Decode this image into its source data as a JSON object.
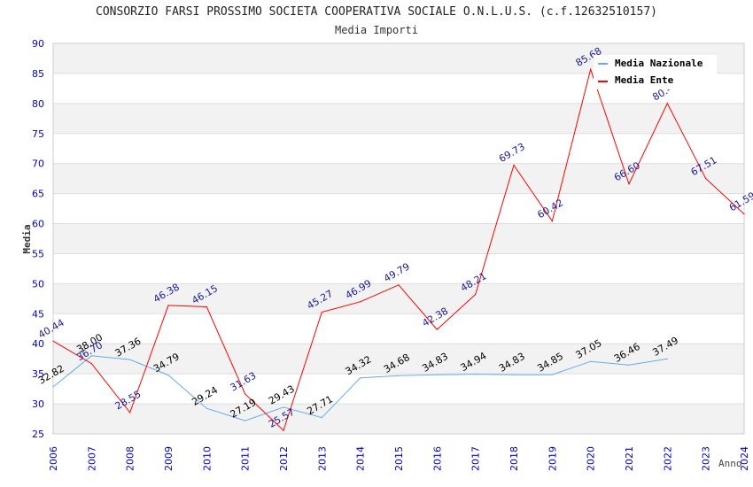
{
  "chart_data": {
    "type": "line",
    "title": "CONSORZIO FARSI PROSSIMO SOCIETA COOPERATIVA SOCIALE O.N.L.U.S. (c.f.12632510157)",
    "subtitle": "Media Importi",
    "xlabel": "Anno",
    "ylabel": "Media",
    "ylim": [
      25,
      90
    ],
    "yticks": [
      "25",
      "30",
      "35",
      "40",
      "45",
      "50",
      "55",
      "60",
      "65",
      "70",
      "75",
      "80",
      "85",
      "90"
    ],
    "x": [
      "2006",
      "2007",
      "2008",
      "2009",
      "2010",
      "2011",
      "2012",
      "2013",
      "2014",
      "2015",
      "2016",
      "2017",
      "2018",
      "2019",
      "2020",
      "2021",
      "2022",
      "2023",
      "2024"
    ],
    "grid": true,
    "legend_position": "top-right",
    "series": [
      {
        "name": "Media Nazionale",
        "color": "#66aaee",
        "values": [
          32.82,
          38.0,
          37.36,
          34.79,
          29.24,
          27.19,
          29.43,
          27.71,
          34.32,
          34.68,
          34.83,
          34.94,
          34.83,
          34.85,
          37.05,
          36.46,
          37.49,
          null,
          null
        ],
        "labels": [
          "32.82",
          "38.00",
          "37.36",
          "34.79",
          "29.24",
          "27.19",
          "29.43",
          "27.71",
          "34.32",
          "34.68",
          "34.83",
          "34.94",
          "34.83",
          "34.85",
          "37.05",
          "36.46",
          "37.49",
          null,
          null
        ]
      },
      {
        "name": "Media Ente",
        "color": "#ff0000",
        "values": [
          40.44,
          36.7,
          28.55,
          46.38,
          46.15,
          31.63,
          25.57,
          45.27,
          46.99,
          49.79,
          42.38,
          48.21,
          69.73,
          60.42,
          85.68,
          66.6,
          80.0,
          67.51,
          61.59
        ],
        "labels": [
          "40.44",
          "36.70",
          "28.55",
          "46.38",
          "46.15",
          "31.63",
          "25.57",
          "45.27",
          "46.99",
          "49.79",
          "42.38",
          "48.21",
          "69.73",
          "60.42",
          "85.68",
          "66.60",
          "80.-",
          "67.51",
          "61.59"
        ]
      }
    ]
  }
}
